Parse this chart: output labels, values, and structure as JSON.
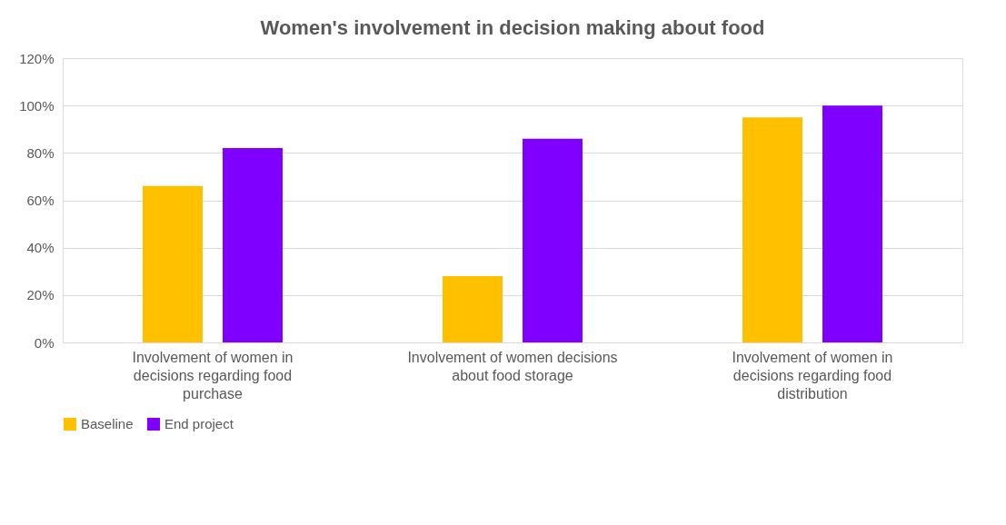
{
  "chart_data": {
    "type": "bar",
    "title": "Women's involvement in decision making about food",
    "categories": [
      "Involvement of women in decisions regarding food purchase",
      "Involvement of women decisions about food storage",
      "Involvement of women in decisions regarding food distribution"
    ],
    "series": [
      {
        "name": "Baseline",
        "color": "#ffc000",
        "values": [
          66,
          28,
          95
        ]
      },
      {
        "name": "End project",
        "color": "#8000ff",
        "values": [
          82,
          86,
          100
        ]
      }
    ],
    "ylim": [
      0,
      120
    ],
    "yticks": [
      {
        "value": 0,
        "label": "0%"
      },
      {
        "value": 20,
        "label": "20%"
      },
      {
        "value": 40,
        "label": "40%"
      },
      {
        "value": 60,
        "label": "60%"
      },
      {
        "value": 80,
        "label": "80%"
      },
      {
        "value": 100,
        "label": "100%"
      },
      {
        "value": 120,
        "label": "120%"
      }
    ],
    "grid": "y",
    "legend": "bottom"
  }
}
